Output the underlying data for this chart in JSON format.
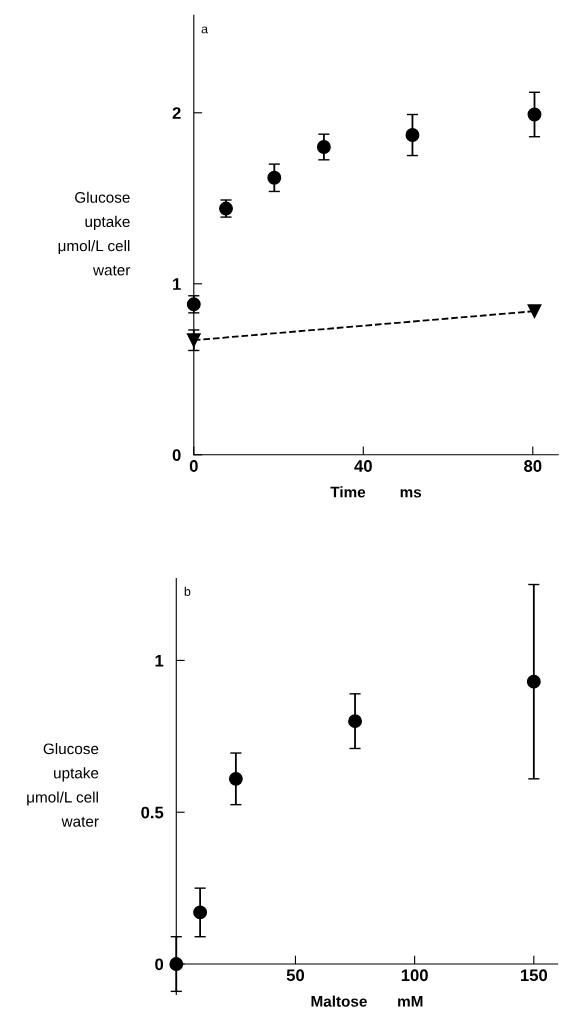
{
  "chart_data": [
    {
      "type": "scatter",
      "xlabel": "Time        ms",
      "ylabel": "Glucose\nuptake\nμmol/L cell\n       water",
      "annotations": [
        "a"
      ],
      "xlim": [
        0,
        86
      ],
      "ylim": [
        0,
        2.57
      ],
      "xticks": [
        0,
        40,
        80
      ],
      "yticks": [
        0,
        1,
        2
      ],
      "grid": false,
      "legend": false,
      "series": [
        {
          "color": "#000000",
          "marker": "circle",
          "x": [
            0,
            7.6,
            19,
            30.7,
            51.6,
            80.4
          ],
          "values": [
            0.88,
            1.44,
            1.62,
            1.8,
            1.87,
            1.99
          ],
          "errors": [
            0.05,
            0.05,
            0.08,
            0.075,
            0.12,
            0.13
          ]
        },
        {
          "type": "line",
          "color": "#000000",
          "marker": "triangle",
          "line_style": "dashed",
          "x": [
            0,
            80.4
          ],
          "values": [
            0.67,
            0.84
          ],
          "errors": [
            0.06,
            null
          ]
        }
      ]
    },
    {
      "type": "scatter",
      "xlabel": "Maltose       mM",
      "ylabel": "Glucose\nuptake\nμmol/L cell\n       water",
      "annotations": [
        "b"
      ],
      "xlim": [
        0,
        160
      ],
      "ylim": [
        -0.1,
        1.27
      ],
      "xticks": [
        50,
        100,
        150
      ],
      "yticks": [
        0,
        {
          "value": 0.5,
          "label": "0.5"
        },
        1
      ],
      "grid": false,
      "legend": false,
      "series": [
        {
          "color": "#000000",
          "marker": "circle",
          "x": [
            0,
            10,
            25,
            75,
            150
          ],
          "values": [
            0,
            0.17,
            0.61,
            0.8,
            0.93
          ],
          "errors": [
            0.09,
            0.08,
            0.085,
            0.09,
            0.32
          ]
        }
      ]
    }
  ]
}
